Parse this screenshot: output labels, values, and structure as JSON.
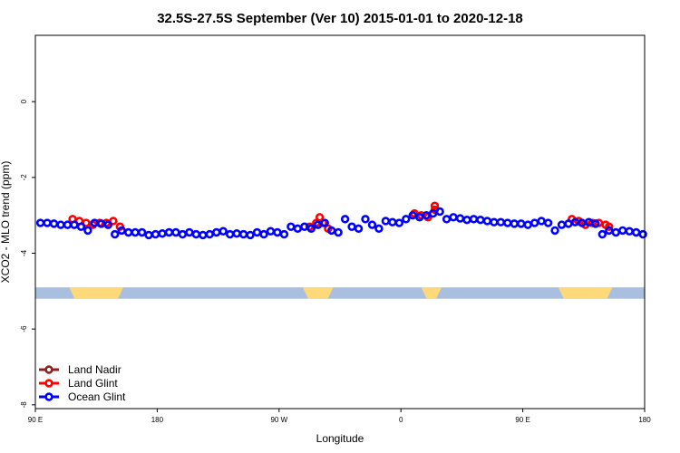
{
  "chart_data": {
    "type": "scatter",
    "title": "32.5S-27.5S September (Ver 10)   2015-01-01 to 2020-12-18",
    "xlabel": "Longitude",
    "ylabel": "XCO2 - MLO trend (ppm)",
    "xlim": [
      90,
      450
    ],
    "ylim": [
      -8.1,
      1.75
    ],
    "x_ticks": [
      {
        "value": 90,
        "label": "90 E"
      },
      {
        "value": 162,
        "label": "180"
      },
      {
        "value": 234,
        "label": "90 W"
      },
      {
        "value": 306,
        "label": "0"
      },
      {
        "value": 378,
        "label": "90 E"
      },
      {
        "value": 450,
        "label": "180"
      }
    ],
    "y_ticks": [
      {
        "value": 0,
        "label": "0"
      },
      {
        "value": -2,
        "label": "-2"
      },
      {
        "value": -4,
        "label": "-4"
      },
      {
        "value": -6,
        "label": "-6"
      },
      {
        "value": -8,
        "label": "-8"
      }
    ],
    "grid": false,
    "legend_position": "bottom-left",
    "land_sea_band": {
      "y_range": [
        -5.2,
        -4.9
      ],
      "sea_color": "#a9bfdf",
      "land_color": "#fdd97a",
      "land_x": [
        [
          110,
          142
        ],
        [
          248,
          266
        ],
        [
          318,
          330
        ],
        [
          399,
          431
        ]
      ]
    },
    "series": [
      {
        "name": "Land Nadir",
        "color": "#8b2323",
        "x": [],
        "y": []
      },
      {
        "name": "Land Glint",
        "color": "#ff0000",
        "x": [
          112,
          116,
          120,
          124,
          128,
          132,
          136,
          140,
          252,
          256,
          258,
          260,
          263,
          314,
          318,
          322,
          326,
          326,
          407,
          411,
          415,
          419,
          423,
          427,
          429
        ],
        "y": [
          -3.1,
          -3.15,
          -3.2,
          -3.25,
          -3.2,
          -3.2,
          -3.15,
          -3.3,
          -3.3,
          -3.2,
          -3.05,
          -3.2,
          -3.35,
          -2.95,
          -3.0,
          -3.05,
          -2.75,
          -2.85,
          -3.1,
          -3.15,
          -3.25,
          -3.2,
          -3.2,
          -3.25,
          -3.3
        ]
      },
      {
        "name": "Ocean Glint",
        "color": "#0000ff",
        "x": [
          93,
          97,
          101,
          105,
          109,
          113,
          117,
          121,
          125,
          129,
          133,
          137,
          141,
          145,
          149,
          153,
          157,
          161,
          165,
          169,
          173,
          177,
          181,
          185,
          189,
          193,
          197,
          201,
          205,
          209,
          213,
          217,
          221,
          225,
          229,
          233,
          237,
          241,
          245,
          249,
          253,
          257,
          261,
          265,
          269,
          273,
          277,
          281,
          285,
          289,
          293,
          297,
          301,
          305,
          309,
          313,
          317,
          321,
          325,
          329,
          333,
          337,
          341,
          345,
          349,
          353,
          357,
          361,
          365,
          369,
          373,
          377,
          381,
          385,
          389,
          393,
          397,
          401,
          405,
          409,
          413,
          417,
          421,
          425,
          429,
          433,
          437,
          441,
          445,
          449
        ],
        "y": [
          -3.2,
          -3.2,
          -3.22,
          -3.25,
          -3.25,
          -3.25,
          -3.3,
          -3.4,
          -3.2,
          -3.22,
          -3.25,
          -3.5,
          -3.4,
          -3.45,
          -3.45,
          -3.45,
          -3.52,
          -3.5,
          -3.48,
          -3.45,
          -3.45,
          -3.5,
          -3.45,
          -3.5,
          -3.52,
          -3.5,
          -3.45,
          -3.42,
          -3.5,
          -3.48,
          -3.5,
          -3.52,
          -3.45,
          -3.5,
          -3.42,
          -3.45,
          -3.5,
          -3.3,
          -3.35,
          -3.3,
          -3.35,
          -3.25,
          -3.2,
          -3.4,
          -3.45,
          -3.1,
          -3.3,
          -3.35,
          -3.1,
          -3.25,
          -3.35,
          -3.15,
          -3.18,
          -3.2,
          -3.1,
          -3.0,
          -3.05,
          -3.0,
          -2.95,
          -2.9,
          -3.1,
          -3.05,
          -3.08,
          -3.12,
          -3.1,
          -3.12,
          -3.15,
          -3.18,
          -3.18,
          -3.2,
          -3.22,
          -3.22,
          -3.25,
          -3.2,
          -3.15,
          -3.2,
          -3.4,
          -3.25,
          -3.22,
          -3.18,
          -3.2,
          -3.18,
          -3.22,
          -3.5,
          -3.4,
          -3.45,
          -3.4,
          -3.42,
          -3.45,
          -3.5
        ]
      }
    ]
  }
}
